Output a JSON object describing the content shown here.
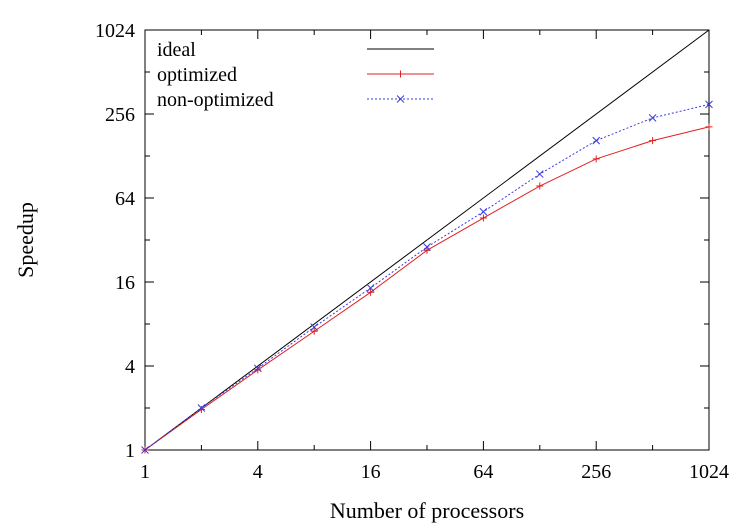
{
  "chart_data": {
    "type": "line",
    "title": "",
    "xlabel": "Number of processors",
    "ylabel": "Speedup",
    "xscale": "log2",
    "yscale": "log2",
    "xlim": [
      1,
      1024
    ],
    "ylim": [
      1,
      1024
    ],
    "xticks": [
      1,
      4,
      16,
      64,
      256,
      1024
    ],
    "yticks": [
      1,
      4,
      16,
      64,
      256,
      1024
    ],
    "grid": false,
    "legend_position": "top-left",
    "series": [
      {
        "name": "ideal",
        "color": "#000000",
        "style": "solid",
        "marker": "none",
        "x": [
          1,
          1024
        ],
        "y": [
          1,
          1024
        ]
      },
      {
        "name": "optimized",
        "color": "#e02020",
        "style": "solid",
        "marker": "+",
        "x": [
          1,
          2,
          4,
          8,
          16,
          32,
          64,
          128,
          256,
          512,
          1024
        ],
        "y": [
          1,
          1.95,
          3.75,
          7.1,
          13.5,
          27,
          46,
          78,
          122,
          165,
          207
        ]
      },
      {
        "name": "non-optimized",
        "color": "#3a3ae0",
        "style": "dotted",
        "marker": "x",
        "x": [
          1,
          2,
          4,
          8,
          16,
          32,
          64,
          128,
          256,
          512,
          1024
        ],
        "y": [
          1,
          2,
          3.85,
          7.6,
          14.5,
          28.5,
          51,
          95,
          165,
          240,
          300
        ]
      }
    ]
  }
}
